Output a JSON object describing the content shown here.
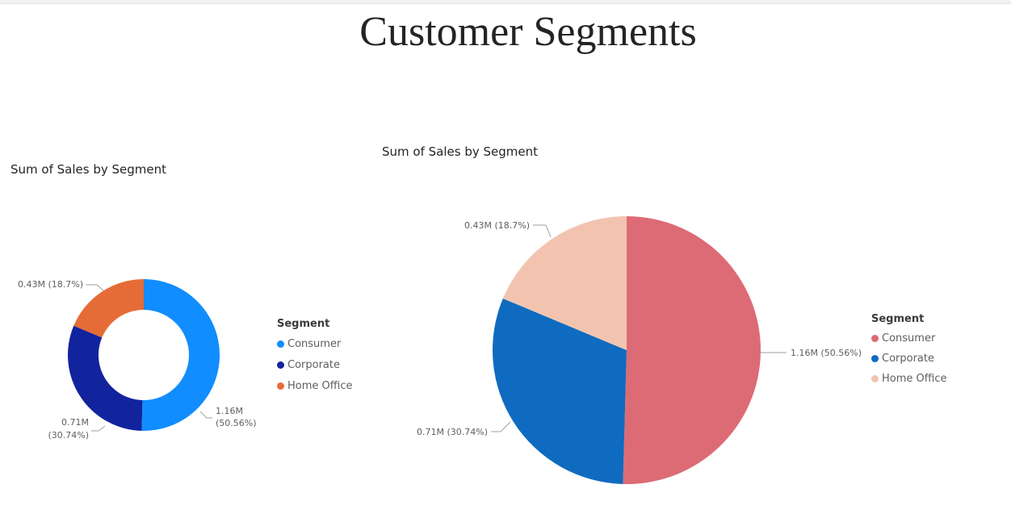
{
  "page": {
    "title": "Customer Segments"
  },
  "visuals": [
    {
      "title": "Sum of Sales by Segment",
      "legend": {
        "title": "Segment",
        "items": [
          {
            "label": "Consumer",
            "color": "#118DFF"
          },
          {
            "label": "Corporate",
            "color": "#12239E"
          },
          {
            "label": "Home Office",
            "color": "#E66C37"
          }
        ]
      }
    },
    {
      "title": "Sum of Sales by Segment",
      "legend": {
        "title": "Segment",
        "items": [
          {
            "label": "Consumer",
            "color": "#DD6B75"
          },
          {
            "label": "Corporate",
            "color": "#0F6BBF"
          },
          {
            "label": "Home Office",
            "color": "#F2C4B0"
          }
        ]
      }
    }
  ],
  "chart_data": [
    {
      "type": "pie",
      "subtype": "donut",
      "title": "Sum of Sales by Segment",
      "categories": [
        "Consumer",
        "Corporate",
        "Home Office"
      ],
      "values": [
        1.16,
        0.71,
        0.43
      ],
      "percentages": [
        50.56,
        30.74,
        18.7
      ],
      "data_labels": [
        "1.16M (50.56%)",
        "0.71M (30.74%)",
        "0.43M (18.7%)"
      ],
      "colors": [
        "#118DFF",
        "#12239E",
        "#E66C37"
      ],
      "legend_title": "Segment",
      "legend_position": "right"
    },
    {
      "type": "pie",
      "title": "Sum of Sales by Segment",
      "categories": [
        "Consumer",
        "Corporate",
        "Home Office"
      ],
      "values": [
        1.16,
        0.71,
        0.43
      ],
      "percentages": [
        50.56,
        30.74,
        18.7
      ],
      "data_labels": [
        "1.16M (50.56%)",
        "0.71M (30.74%)",
        "0.43M (18.7%)"
      ],
      "colors": [
        "#DD6B75",
        "#0F6BBF",
        "#F2C4B0"
      ],
      "legend_title": "Segment",
      "legend_position": "right"
    }
  ]
}
